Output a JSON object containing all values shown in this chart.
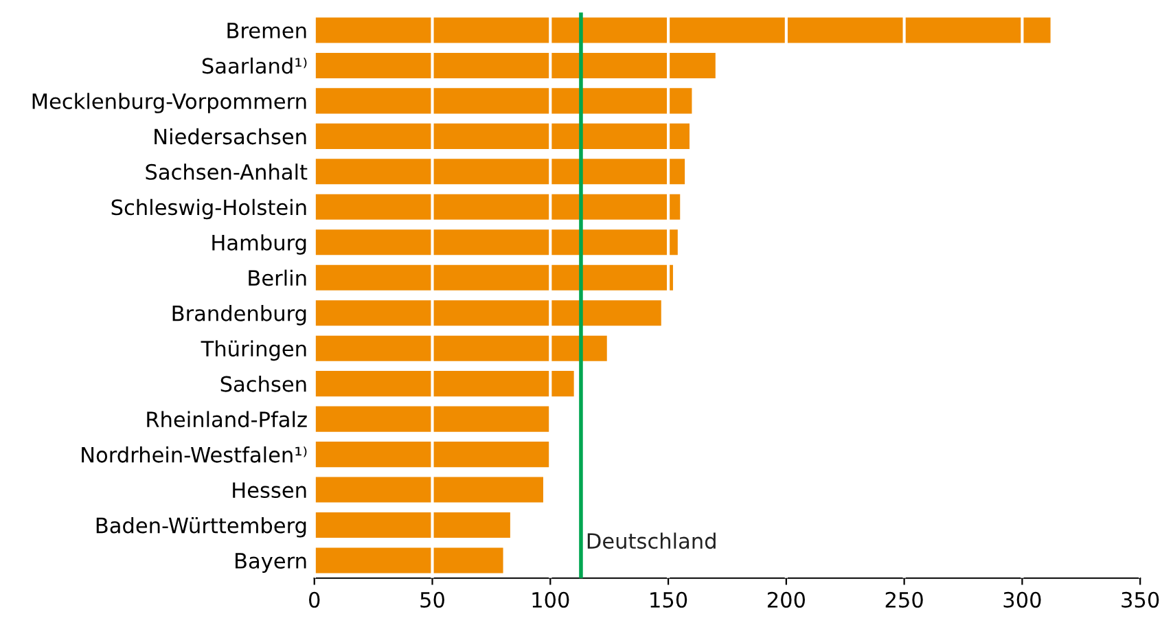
{
  "chart_data": {
    "type": "bar",
    "orientation": "horizontal",
    "categories": [
      "Bremen",
      "Saarland¹⁾",
      "Mecklenburg-Vorpommern",
      "Niedersachsen",
      "Sachsen-Anhalt",
      "Schleswig-Holstein",
      "Hamburg",
      "Berlin",
      "Brandenburg",
      "Thüringen",
      "Sachsen",
      "Rheinland-Pfalz",
      "Nordrhein-Westfalen¹⁾",
      "Hessen",
      "Baden-Württemberg",
      "Bayern"
    ],
    "values": [
      312,
      170,
      160,
      159,
      157,
      155,
      154,
      152,
      147,
      124,
      110,
      100,
      100,
      97,
      83,
      80
    ],
    "color": "#f08c00",
    "xlim": [
      0,
      350
    ],
    "xticks": [
      0,
      50,
      100,
      150,
      200,
      250,
      300,
      350
    ],
    "grid": "x",
    "legend": false,
    "ref_lines": [
      {
        "axis": "x",
        "value": 113,
        "label": "Deutschland",
        "color": "#00a651"
      }
    ]
  }
}
